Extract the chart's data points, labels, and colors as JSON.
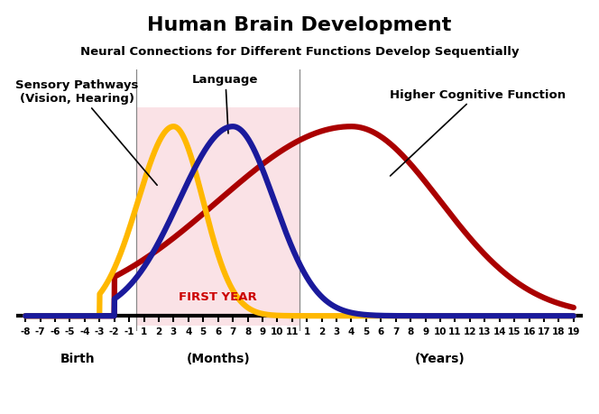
{
  "title": "Human Brain Development",
  "subtitle": "Neural Connections for Different Functions Develop Sequentially",
  "background_color": "#ffffff",
  "first_year_label": "FIRST YEAR",
  "first_year_color": "#cc0000",
  "pink_color": "#f5c0c8",
  "pink_alpha": 0.45,
  "sensory_color": "#FFB800",
  "language_color": "#1a1a9c",
  "cognitive_color": "#aa0000",
  "linewidth": 4.5,
  "sensory_peak": 9.5,
  "sensory_sigma": 2.2,
  "sensory_skew_factor": 1.8,
  "language_peak": 13.5,
  "language_sigma": 2.8,
  "cognitive_peak": 21.5,
  "cognitive_sigma": 5.5,
  "birth_label": "Birth",
  "months_label": "(Months)",
  "years_label": "(Years)"
}
